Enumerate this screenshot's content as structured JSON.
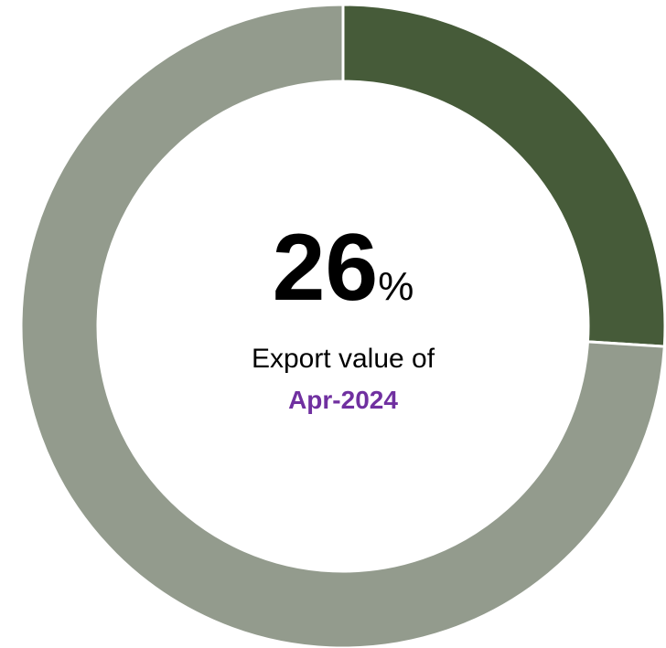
{
  "chart_data": {
    "type": "donut",
    "values": [
      26,
      74
    ],
    "colors": [
      "#465b39",
      "#939b8d"
    ],
    "center_unit": "%",
    "center_label": "Export value of",
    "center_sublabel": "Apr-2024"
  }
}
